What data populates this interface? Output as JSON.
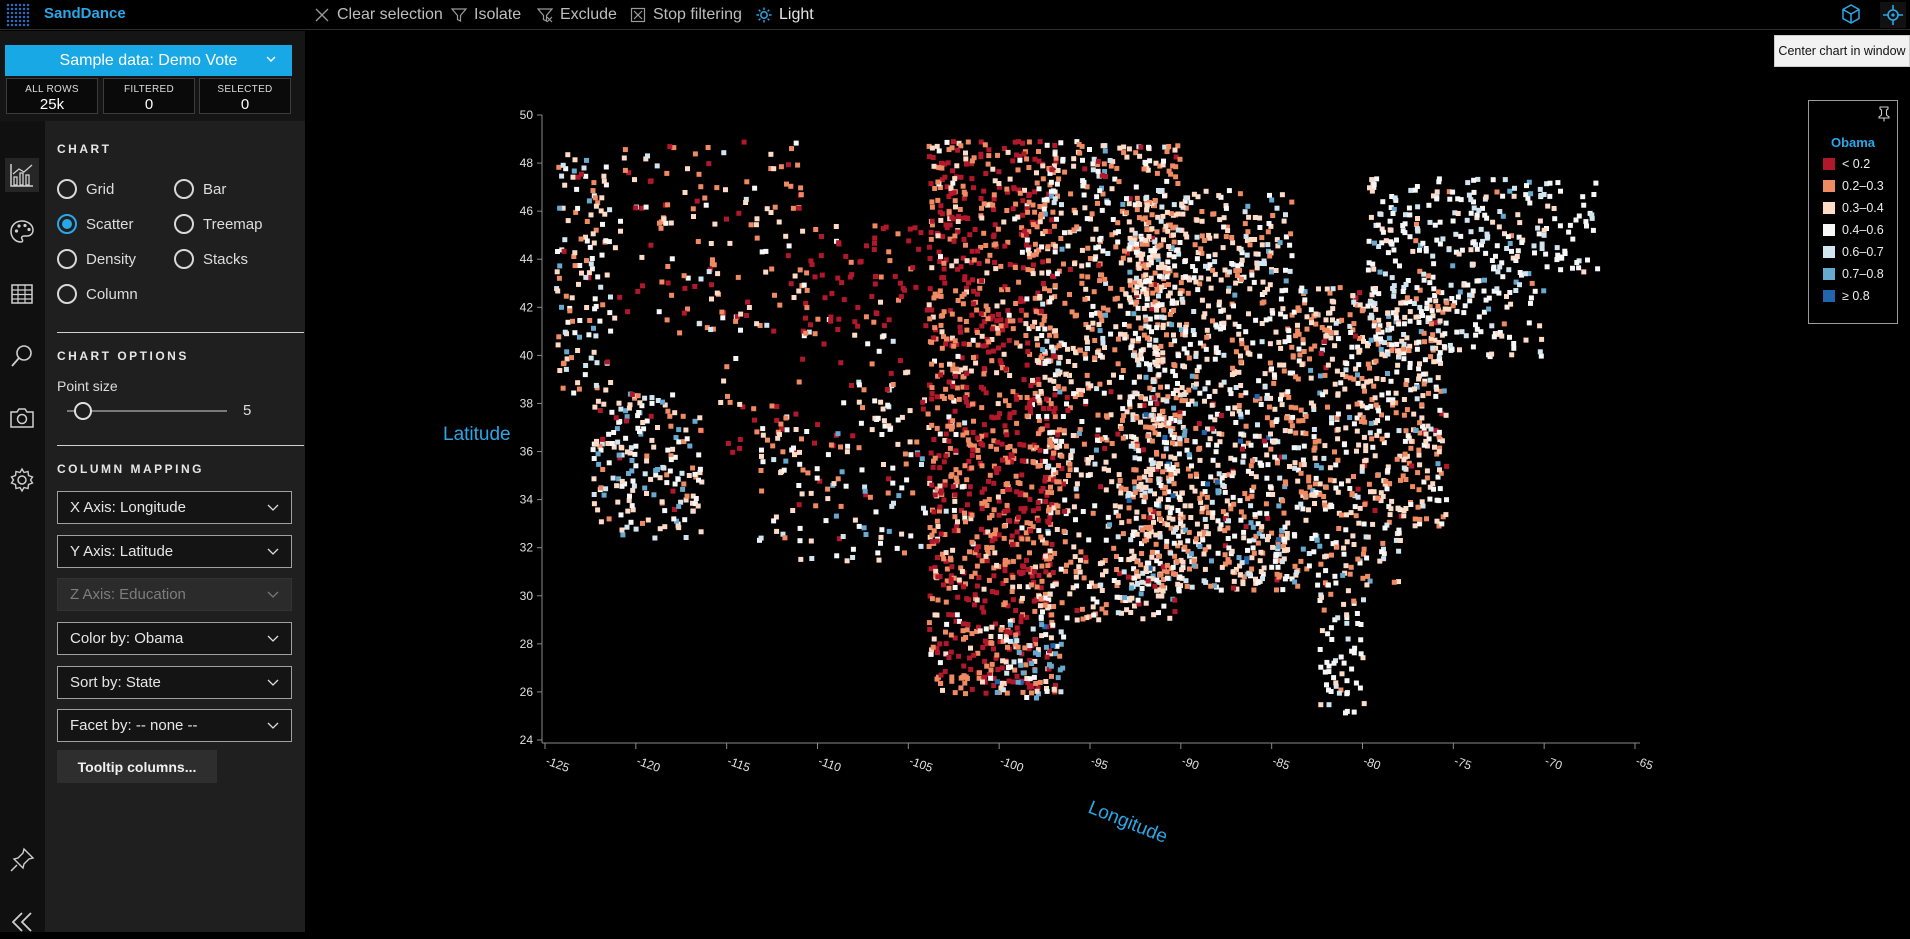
{
  "app": {
    "title": "SandDance"
  },
  "toolbar": {
    "clear_selection": "Clear selection",
    "isolate": "Isolate",
    "exclude": "Exclude",
    "stop_filtering": "Stop filtering",
    "light": "Light"
  },
  "tooltip": {
    "text": "Center chart in window"
  },
  "dataset": {
    "label": "Sample data: Demo Vote",
    "stats": [
      {
        "label": "ALL ROWS",
        "value": "25k"
      },
      {
        "label": "FILTERED",
        "value": "0"
      },
      {
        "label": "SELECTED",
        "value": "0"
      }
    ]
  },
  "sidebar_icons": [
    "chart-icon",
    "palette-icon",
    "table-icon",
    "search-icon",
    "camera-icon",
    "settings-icon",
    "pin-icon",
    "collapse-icon"
  ],
  "chart_section": {
    "title": "CHART",
    "options": [
      "Grid",
      "Bar",
      "Scatter",
      "Treemap",
      "Density",
      "Stacks",
      "Column"
    ],
    "selected": "Scatter"
  },
  "chart_options": {
    "title": "CHART OPTIONS",
    "point_size_label": "Point size",
    "point_size_value": "5",
    "point_size_fraction": 0.1
  },
  "column_mapping": {
    "title": "COLUMN MAPPING",
    "x_axis": "X Axis: Longitude",
    "y_axis": "Y Axis: Latitude",
    "z_axis": "Z Axis: Education",
    "color_by": "Color by: Obama",
    "sort_by": "Sort by: State",
    "facet_by": "Facet by: -- none --",
    "tooltip_button": "Tooltip columns..."
  },
  "legend": {
    "title": "Obama",
    "items": [
      {
        "label": "< 0.2",
        "color": "#b2182b"
      },
      {
        "label": "0.2–0.3",
        "color": "#ef8a62"
      },
      {
        "label": "0.3–0.4",
        "color": "#fddbc7"
      },
      {
        "label": "0.4–0.6",
        "color": "#f7f7f7"
      },
      {
        "label": "0.6–0.7",
        "color": "#d1e5f0"
      },
      {
        "label": "0.7–0.8",
        "color": "#67a9cf"
      },
      {
        "label": "≥ 0.8",
        "color": "#2166ac"
      }
    ]
  },
  "colors": {
    "accent": "#2aa7e8",
    "background": "#000000",
    "panel": "#1f1f1f"
  },
  "chart_data": {
    "type": "scatter",
    "xlabel": "Longitude",
    "ylabel": "Latitude",
    "xlim": [
      -125,
      -65
    ],
    "ylim": [
      24,
      50
    ],
    "x_ticks": [
      -125,
      -120,
      -115,
      -110,
      -105,
      -100,
      -95,
      -90,
      -85,
      -80,
      -75,
      -70,
      -65
    ],
    "y_ticks": [
      24,
      26,
      28,
      30,
      32,
      34,
      36,
      38,
      40,
      42,
      44,
      46,
      48,
      50
    ],
    "color_field": "Obama",
    "approx_point_count": "25k",
    "regions": [
      {
        "lon": [
          -124.5,
          -121.5
        ],
        "lat": [
          38.5,
          48.5
        ],
        "density": 0.55,
        "mix": [
          0.05,
          0.2,
          0.25,
          0.3,
          0.12,
          0.08,
          0
        ]
      },
      {
        "lon": [
          -122.5,
          -116.5
        ],
        "lat": [
          32.5,
          38.5
        ],
        "density": 0.7,
        "mix": [
          0.03,
          0.12,
          0.25,
          0.35,
          0.13,
          0.12,
          0
        ]
      },
      {
        "lon": [
          -121.5,
          -111
        ],
        "lat": [
          41,
          49
        ],
        "density": 0.22,
        "mix": [
          0.25,
          0.35,
          0.2,
          0.15,
          0.05,
          0,
          0
        ]
      },
      {
        "lon": [
          -116,
          -109
        ],
        "lat": [
          36,
          42
        ],
        "density": 0.15,
        "mix": [
          0.45,
          0.3,
          0.12,
          0.1,
          0.03,
          0,
          0
        ]
      },
      {
        "lon": [
          -113.5,
          -102.5
        ],
        "lat": [
          31.5,
          37.5
        ],
        "density": 0.28,
        "mix": [
          0.05,
          0.15,
          0.25,
          0.32,
          0.13,
          0.1,
          0
        ]
      },
      {
        "lon": [
          -111,
          -104
        ],
        "lat": [
          41,
          45.5
        ],
        "density": 0.32,
        "mix": [
          0.65,
          0.25,
          0.05,
          0.05,
          0,
          0,
          0
        ]
      },
      {
        "lon": [
          -109,
          -102
        ],
        "lat": [
          37,
          41
        ],
        "density": 0.25,
        "mix": [
          0.2,
          0.3,
          0.25,
          0.18,
          0.07,
          0,
          0
        ]
      },
      {
        "lon": [
          -104,
          -97
        ],
        "lat": [
          26,
          49
        ],
        "density": 0.9,
        "mix": [
          0.45,
          0.4,
          0.1,
          0.05,
          0,
          0,
          0
        ]
      },
      {
        "lon": [
          -100.5,
          -96.5
        ],
        "lat": [
          25.8,
          29
        ],
        "density": 0.6,
        "mix": [
          0,
          0.05,
          0.1,
          0.15,
          0.2,
          0.35,
          0.15
        ]
      },
      {
        "lon": [
          -98,
          -90
        ],
        "lat": [
          29,
          49
        ],
        "density": 0.75,
        "mix": [
          0.06,
          0.32,
          0.27,
          0.25,
          0.07,
          0.03,
          0
        ]
      },
      {
        "lon": [
          -93,
          -84
        ],
        "lat": [
          30.3,
          38.5
        ],
        "density": 0.9,
        "mix": [
          0.05,
          0.32,
          0.28,
          0.2,
          0.08,
          0.05,
          0.02
        ]
      },
      {
        "lon": [
          -93,
          -84
        ],
        "lat": [
          38.5,
          47
        ],
        "density": 0.75,
        "mix": [
          0,
          0.2,
          0.35,
          0.35,
          0.07,
          0.03,
          0
        ]
      },
      {
        "lon": [
          -84,
          -75.5
        ],
        "lat": [
          33,
          43
        ],
        "density": 0.85,
        "mix": [
          0.03,
          0.3,
          0.32,
          0.25,
          0.07,
          0.03,
          0
        ]
      },
      {
        "lon": [
          -85,
          -78
        ],
        "lat": [
          30.5,
          33
        ],
        "density": 0.7,
        "mix": [
          0,
          0.25,
          0.2,
          0.35,
          0.12,
          0.08,
          0
        ]
      },
      {
        "lon": [
          -82.5,
          -80
        ],
        "lat": [
          25.2,
          30.5
        ],
        "density": 0.6,
        "mix": [
          0,
          0.05,
          0.15,
          0.65,
          0.15,
          0,
          0
        ]
      },
      {
        "lon": [
          -80,
          -70
        ],
        "lat": [
          40,
          47.5
        ],
        "density": 0.6,
        "mix": [
          0,
          0.05,
          0.15,
          0.5,
          0.25,
          0.05,
          0
        ]
      },
      {
        "lon": [
          -70.5,
          -67
        ],
        "lat": [
          43.5,
          47.5
        ],
        "density": 0.4,
        "mix": [
          0,
          0,
          0.05,
          0.7,
          0.25,
          0,
          0
        ]
      }
    ]
  }
}
